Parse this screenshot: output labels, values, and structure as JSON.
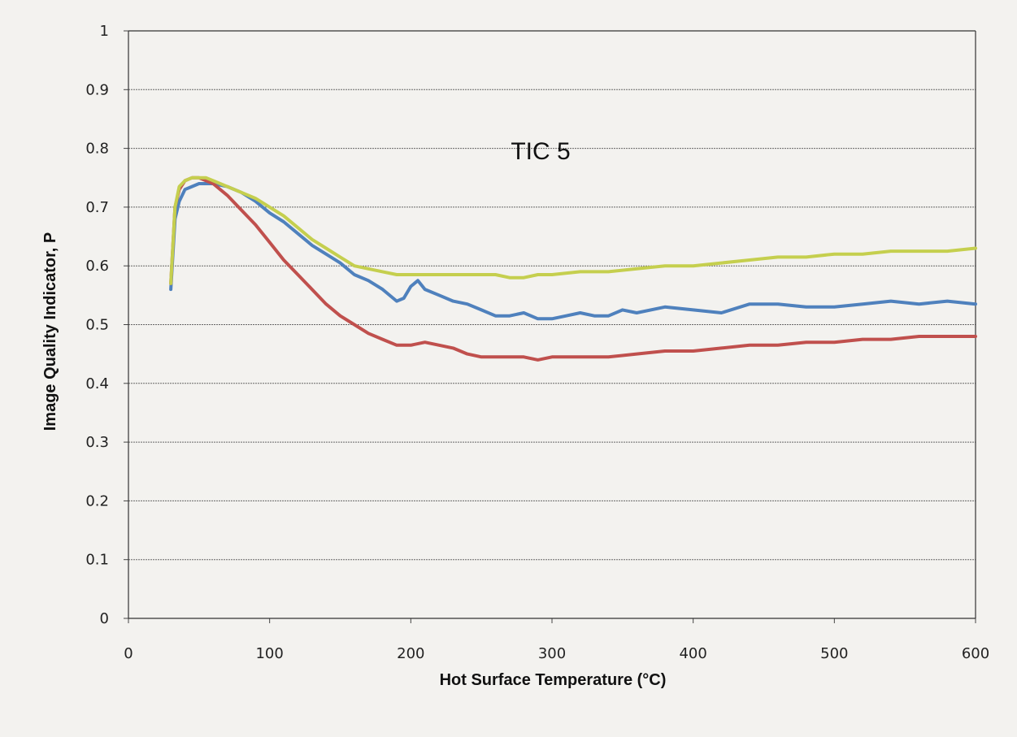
{
  "chart_data": {
    "type": "line",
    "title": "",
    "annotation": "TIC 5",
    "xlabel": "Hot Surface Temperature (°C)",
    "ylabel": "Image Quality Indicator, P",
    "xlim": [
      0,
      600
    ],
    "ylim": [
      0,
      1
    ],
    "xticks": [
      "0",
      "100",
      "200",
      "300",
      "400",
      "500",
      "600"
    ],
    "yticks": [
      "0",
      "0.1",
      "0.2",
      "0.3",
      "0.4",
      "0.5",
      "0.6",
      "0.7",
      "0.8",
      "0.9",
      "1"
    ],
    "grid": true,
    "legend": "none",
    "series": [
      {
        "color": "#4f81bd",
        "x": [
          30,
          33,
          36,
          40,
          45,
          50,
          55,
          60,
          70,
          80,
          90,
          100,
          110,
          120,
          130,
          140,
          150,
          160,
          170,
          180,
          190,
          195,
          200,
          205,
          210,
          220,
          230,
          240,
          250,
          260,
          270,
          280,
          290,
          300,
          310,
          320,
          330,
          340,
          350,
          360,
          380,
          400,
          420,
          440,
          460,
          480,
          500,
          520,
          540,
          560,
          580,
          600
        ],
        "y": [
          0.56,
          0.68,
          0.71,
          0.73,
          0.735,
          0.74,
          0.74,
          0.74,
          0.735,
          0.725,
          0.71,
          0.69,
          0.675,
          0.655,
          0.635,
          0.62,
          0.605,
          0.585,
          0.575,
          0.56,
          0.54,
          0.545,
          0.565,
          0.575,
          0.56,
          0.55,
          0.54,
          0.535,
          0.525,
          0.515,
          0.515,
          0.52,
          0.51,
          0.51,
          0.515,
          0.52,
          0.515,
          0.515,
          0.525,
          0.52,
          0.53,
          0.525,
          0.52,
          0.535,
          0.535,
          0.53,
          0.53,
          0.535,
          0.54,
          0.535,
          0.54,
          0.535
        ]
      },
      {
        "color": "#c0504d",
        "x": [
          30,
          33,
          36,
          40,
          45,
          50,
          55,
          60,
          70,
          80,
          90,
          100,
          110,
          120,
          130,
          140,
          150,
          160,
          170,
          180,
          190,
          200,
          210,
          220,
          230,
          240,
          250,
          260,
          270,
          280,
          290,
          300,
          320,
          340,
          360,
          380,
          400,
          420,
          440,
          460,
          480,
          500,
          520,
          540,
          560,
          580,
          600
        ],
        "y": [
          0.57,
          0.7,
          0.73,
          0.745,
          0.75,
          0.75,
          0.745,
          0.74,
          0.72,
          0.695,
          0.67,
          0.64,
          0.61,
          0.585,
          0.56,
          0.535,
          0.515,
          0.5,
          0.485,
          0.475,
          0.465,
          0.465,
          0.47,
          0.465,
          0.46,
          0.45,
          0.445,
          0.445,
          0.445,
          0.445,
          0.44,
          0.445,
          0.445,
          0.445,
          0.45,
          0.455,
          0.455,
          0.46,
          0.465,
          0.465,
          0.47,
          0.47,
          0.475,
          0.475,
          0.48,
          0.48,
          0.48
        ]
      },
      {
        "color": "#c5cf4e",
        "x": [
          30,
          33,
          36,
          40,
          45,
          50,
          55,
          60,
          70,
          80,
          90,
          100,
          110,
          120,
          130,
          140,
          150,
          160,
          170,
          180,
          190,
          200,
          210,
          220,
          230,
          240,
          250,
          260,
          270,
          280,
          290,
          300,
          320,
          340,
          360,
          380,
          400,
          420,
          440,
          460,
          480,
          500,
          520,
          540,
          560,
          580,
          600
        ],
        "y": [
          0.57,
          0.7,
          0.735,
          0.745,
          0.75,
          0.75,
          0.75,
          0.745,
          0.735,
          0.725,
          0.715,
          0.7,
          0.685,
          0.665,
          0.645,
          0.63,
          0.615,
          0.6,
          0.595,
          0.59,
          0.585,
          0.585,
          0.585,
          0.585,
          0.585,
          0.585,
          0.585,
          0.585,
          0.58,
          0.58,
          0.585,
          0.585,
          0.59,
          0.59,
          0.595,
          0.6,
          0.6,
          0.605,
          0.61,
          0.615,
          0.615,
          0.62,
          0.62,
          0.625,
          0.625,
          0.625,
          0.63
        ]
      }
    ]
  }
}
